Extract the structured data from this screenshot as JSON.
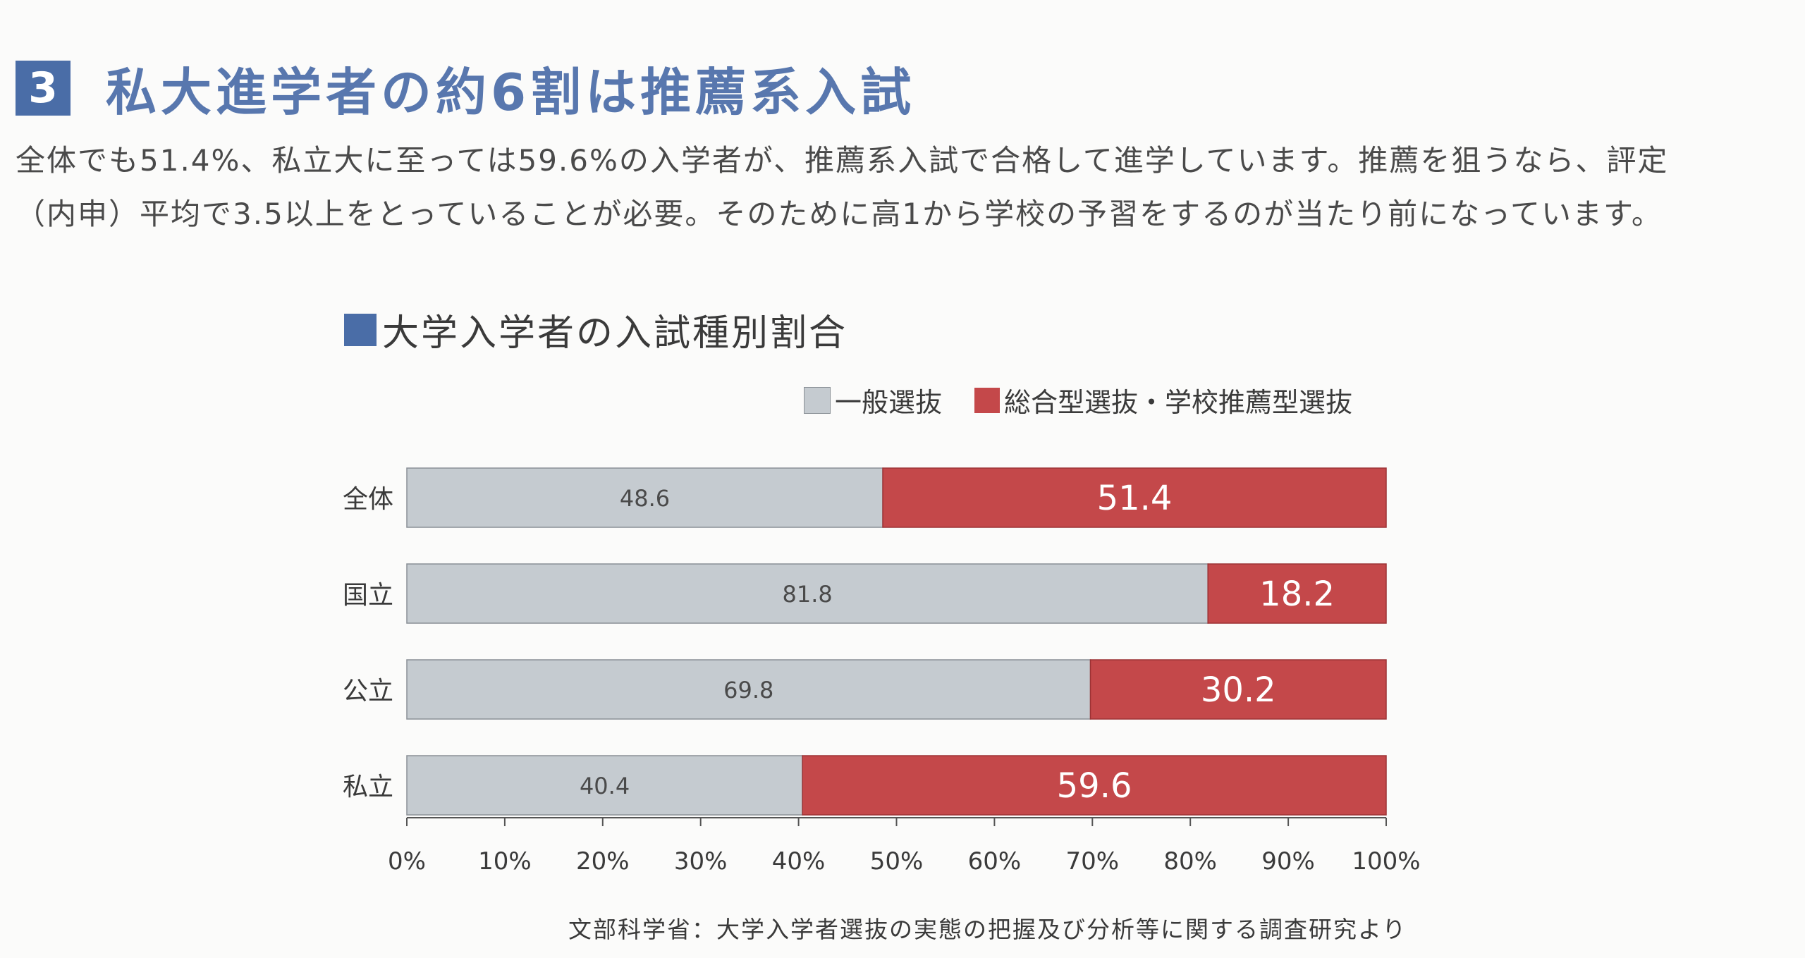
{
  "header": {
    "number": "3",
    "title": "私大進学者の約6割は推薦系入試"
  },
  "intro": {
    "line1": "全体でも51.4%、私立大に至っては59.6%の入学者が、推薦系入試で合格して進学しています。推薦を狙うなら、評定",
    "line2": "（内申）平均で3.5以上をとっていることが必要。そのために高1から学校の予習をするのが当たり前になっています。"
  },
  "chart_heading": "大学入学者の入試種別割合",
  "legend": {
    "general": "一般選抜",
    "recommend": "総合型選抜・学校推薦型選抜"
  },
  "source": "文部科学省：大学入学者選抜の実態の把握及び分析等に関する調査研究より",
  "colors": {
    "accent": "#4a6da7",
    "general": "#c5cbd0",
    "recommend": "#c4484a"
  },
  "chart_data": {
    "type": "bar",
    "orientation": "horizontal",
    "stacked": true,
    "categories": [
      "全体",
      "国立",
      "公立",
      "私立"
    ],
    "series": [
      {
        "name": "一般選抜",
        "values": [
          48.6,
          81.8,
          69.8,
          40.4
        ]
      },
      {
        "name": "総合型選抜・学校推薦型選抜",
        "values": [
          51.4,
          18.2,
          30.2,
          59.6
        ]
      }
    ],
    "xlim": [
      0,
      100
    ],
    "xticks": [
      "0%",
      "10%",
      "20%",
      "30%",
      "40%",
      "50%",
      "60%",
      "70%",
      "80%",
      "90%",
      "100%"
    ],
    "grid": false,
    "legend_position": "top-right"
  }
}
